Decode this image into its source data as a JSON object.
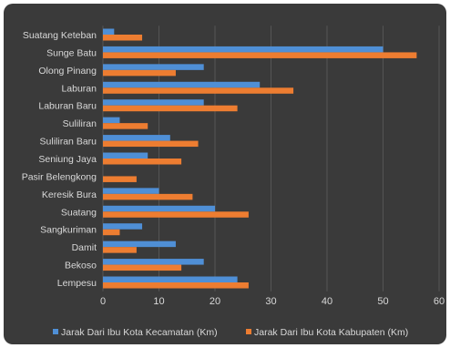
{
  "chart_data": {
    "type": "bar",
    "orientation": "horizontal",
    "categories": [
      "Suatang Keteban",
      "Sunge Batu",
      "Olong Pinang",
      "Laburan",
      "Laburan Baru",
      "Suliliran",
      "Suliliran Baru",
      "Seniung Jaya",
      "Pasir Belengkong",
      "Keresik Bura",
      "Suatang",
      "Sangkuriman",
      "Damit",
      "Bekoso",
      "Lempesu"
    ],
    "series": [
      {
        "name": "Jarak Dari Ibu Kota Kecamatan (Km)",
        "color": "#4f8fd6",
        "values": [
          2,
          50,
          18,
          28,
          18,
          3,
          12,
          8,
          0,
          10,
          20,
          7,
          13,
          18,
          24
        ]
      },
      {
        "name": "Jarak Dari Ibu Kota Kabupaten (Km)",
        "color": "#ed7d31",
        "values": [
          7,
          56,
          13,
          34,
          24,
          8,
          17,
          14,
          6,
          16,
          26,
          3,
          6,
          14,
          26
        ]
      }
    ],
    "x_ticks": [
      "0",
      "10",
      "20",
      "30",
      "40",
      "50",
      "60"
    ],
    "xlim": [
      0,
      60
    ],
    "grid": true,
    "legend_position": "bottom"
  }
}
